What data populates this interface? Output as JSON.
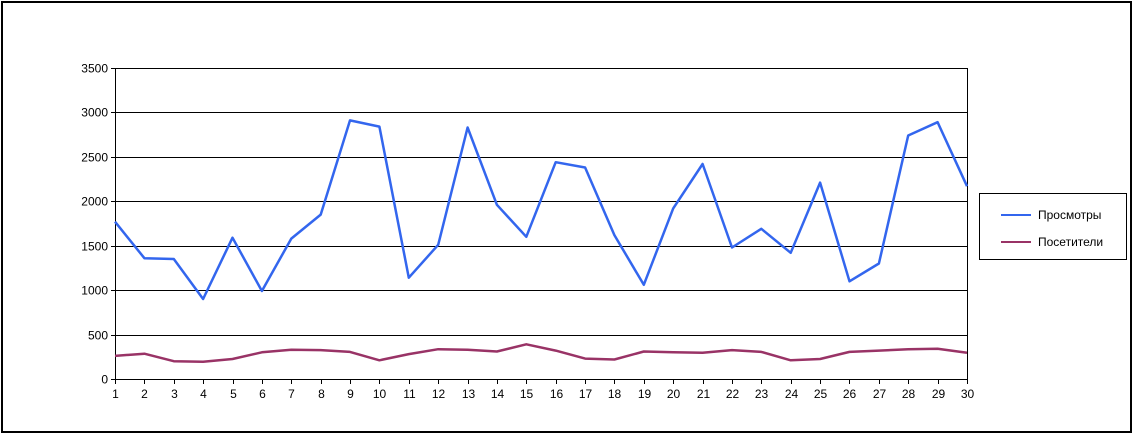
{
  "chart_data": {
    "type": "line",
    "x": [
      1,
      2,
      3,
      4,
      5,
      6,
      7,
      8,
      9,
      10,
      11,
      12,
      13,
      14,
      15,
      16,
      17,
      18,
      19,
      20,
      21,
      22,
      23,
      24,
      25,
      26,
      27,
      28,
      29,
      30
    ],
    "ylim": [
      0,
      3500
    ],
    "yticks": [
      0,
      500,
      1000,
      1500,
      2000,
      2500,
      3000,
      3500
    ],
    "grid": "horizontal",
    "legend": "right",
    "series": [
      {
        "name": "Просмотры",
        "color": "#3366ee",
        "values": [
          1770,
          1360,
          1350,
          900,
          1590,
          990,
          1580,
          1850,
          2910,
          2840,
          1140,
          1510,
          2830,
          1960,
          1600,
          2440,
          2380,
          1620,
          1060,
          1920,
          2420,
          1480,
          1690,
          1420,
          2210,
          1100,
          1300,
          2740,
          2890,
          2170
        ]
      },
      {
        "name": "Посетители",
        "color": "#993366",
        "values": [
          260,
          285,
          200,
          195,
          225,
          300,
          330,
          325,
          305,
          210,
          280,
          335,
          330,
          310,
          390,
          320,
          230,
          220,
          310,
          300,
          295,
          325,
          305,
          210,
          225,
          305,
          320,
          335,
          340,
          295
        ]
      }
    ]
  }
}
